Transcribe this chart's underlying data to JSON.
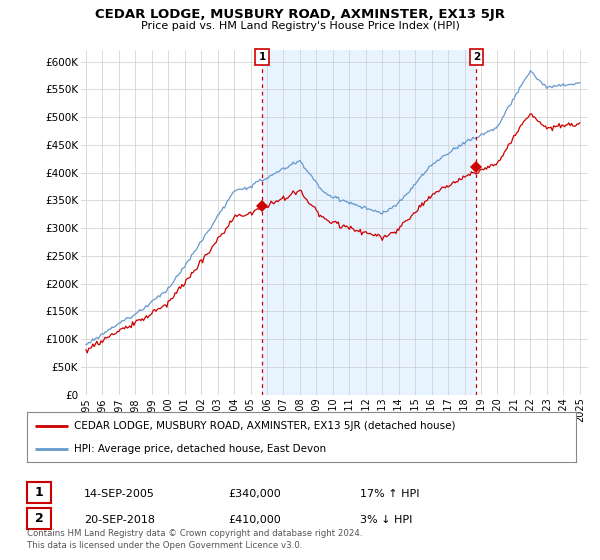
{
  "title": "CEDAR LODGE, MUSBURY ROAD, AXMINSTER, EX13 5JR",
  "subtitle": "Price paid vs. HM Land Registry's House Price Index (HPI)",
  "legend_line1": "CEDAR LODGE, MUSBURY ROAD, AXMINSTER, EX13 5JR (detached house)",
  "legend_line2": "HPI: Average price, detached house, East Devon",
  "sale1_date": "14-SEP-2005",
  "sale1_price": "£340,000",
  "sale1_hpi": "17% ↑ HPI",
  "sale2_date": "20-SEP-2018",
  "sale2_price": "£410,000",
  "sale2_hpi": "3% ↓ HPI",
  "footer": "Contains HM Land Registry data © Crown copyright and database right 2024.\nThis data is licensed under the Open Government Licence v3.0.",
  "ylim": [
    0,
    620000
  ],
  "yticks": [
    0,
    50000,
    100000,
    150000,
    200000,
    250000,
    300000,
    350000,
    400000,
    450000,
    500000,
    550000,
    600000
  ],
  "ytick_labels": [
    "£0",
    "£50K",
    "£100K",
    "£150K",
    "£200K",
    "£250K",
    "£300K",
    "£350K",
    "£400K",
    "£450K",
    "£500K",
    "£550K",
    "£600K"
  ],
  "hpi_color": "#6699cc",
  "hpi_fill_color": "#ddeeff",
  "price_color": "#cc0000",
  "marker_color": "#cc0000",
  "sale1_year": 2005.71,
  "sale1_price_val": 340000,
  "sale2_year": 2018.72,
  "sale2_price_val": 410000,
  "background_color": "#ffffff",
  "grid_color": "#cccccc",
  "vline_color": "#cc0000",
  "xlim_left": 1994.7,
  "xlim_right": 2025.5
}
